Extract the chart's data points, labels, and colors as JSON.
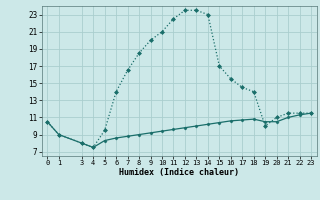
{
  "xlabel": "Humidex (Indice chaleur)",
  "bg_color": "#cce8e8",
  "grid_color": "#aacece",
  "line_color": "#1a6e6a",
  "xlim": [
    -0.5,
    23.5
  ],
  "ylim": [
    6.5,
    24.0
  ],
  "xticks": [
    0,
    1,
    3,
    4,
    5,
    6,
    7,
    8,
    9,
    10,
    11,
    12,
    13,
    14,
    15,
    16,
    17,
    18,
    19,
    20,
    21,
    22,
    23
  ],
  "yticks": [
    7,
    9,
    11,
    13,
    15,
    17,
    19,
    21,
    23
  ],
  "curve1_x": [
    0,
    1,
    3,
    4,
    5,
    6,
    7,
    8,
    9,
    10,
    11,
    12,
    13,
    14,
    15,
    16,
    17,
    18,
    19,
    20,
    21,
    22,
    23
  ],
  "curve1_y": [
    10.5,
    9.0,
    8.0,
    7.5,
    9.5,
    14.0,
    16.5,
    18.5,
    20.0,
    21.0,
    22.5,
    23.5,
    23.5,
    23.0,
    17.0,
    15.5,
    14.5,
    14.0,
    10.0,
    11.0,
    11.5,
    11.5,
    11.5
  ],
  "curve2_x": [
    0,
    1,
    3,
    4,
    5,
    6,
    7,
    8,
    9,
    10,
    11,
    12,
    13,
    14,
    15,
    16,
    17,
    18,
    19,
    20,
    21,
    22,
    23
  ],
  "curve2_y": [
    10.5,
    9.0,
    8.0,
    7.5,
    8.3,
    8.6,
    8.8,
    9.0,
    9.2,
    9.4,
    9.6,
    9.8,
    10.0,
    10.2,
    10.4,
    10.6,
    10.7,
    10.8,
    10.5,
    10.5,
    11.0,
    11.3,
    11.5
  ]
}
